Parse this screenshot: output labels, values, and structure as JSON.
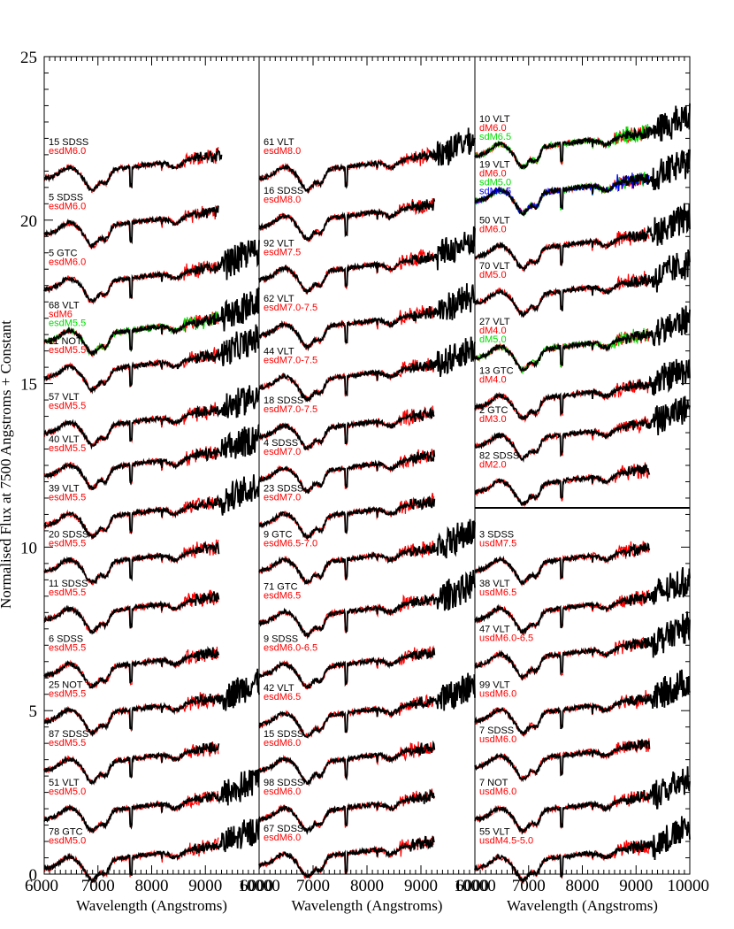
{
  "figure": {
    "ylabel": "Normalised Flux at 7500 Angstroms + Constant",
    "xlabel": "Wavelength (Angstroms)",
    "xticks": [
      "6000",
      "7000",
      "8000",
      "9000",
      "10000"
    ],
    "yticks": [
      "0",
      "5",
      "10",
      "15",
      "20",
      "25"
    ]
  },
  "chart_data": {
    "type": "line",
    "title": "",
    "xlabel": "Wavelength (Angstroms)",
    "ylabel": "Normalised Flux at 7500 Angstroms + Constant",
    "xlim": [
      6000,
      10000
    ],
    "ylim": [
      0,
      25
    ],
    "colors": {
      "object": "#000000",
      "template": "#ff0000",
      "template2": "#00dd00",
      "template3": "#0000ff"
    },
    "panels": [
      {
        "name": "left",
        "spectra": [
          {
            "object": "15 SDSS",
            "templates": [
              "esdM6.0"
            ],
            "offset": 21.6,
            "end": 9300
          },
          {
            "object": "5 SDSS",
            "templates": [
              "esdM6.0"
            ],
            "offset": 19.9,
            "end": 9250
          },
          {
            "object": "5 GTC",
            "templates": [
              "esdM6.0"
            ],
            "offset": 18.2,
            "end": 10000
          },
          {
            "object": "68 VLT",
            "templates": [
              "sdM6",
              "esdM5.5"
            ],
            "offset": 16.6,
            "end": 10000
          },
          {
            "object": "11 NOT",
            "templates": [
              "esdM5.5"
            ],
            "offset": 15.5,
            "end": 10000
          },
          {
            "object": "57 VLT",
            "templates": [
              "esdM5.5"
            ],
            "offset": 13.8,
            "end": 10000
          },
          {
            "object": "40 VLT",
            "templates": [
              "esdM5.5"
            ],
            "offset": 12.5,
            "end": 10000
          },
          {
            "object": "39 VLT",
            "templates": [
              "esdM5.5"
            ],
            "offset": 11.0,
            "end": 10000
          },
          {
            "object": "20 SDSS",
            "templates": [
              "esdM5.5"
            ],
            "offset": 9.6,
            "end": 9250
          },
          {
            "object": "11 SDSS",
            "templates": [
              "esdM5.5"
            ],
            "offset": 8.1,
            "end": 9250
          },
          {
            "object": "6 SDSS",
            "templates": [
              "esdM5.5"
            ],
            "offset": 6.4,
            "end": 9250
          },
          {
            "object": "25 NOT",
            "templates": [
              "esdM5.5"
            ],
            "offset": 5.0,
            "end": 10000
          },
          {
            "object": "87 SDSS",
            "templates": [
              "esdM5.5"
            ],
            "offset": 3.5,
            "end": 9250
          },
          {
            "object": "51 VLT",
            "templates": [
              "esdM5.0"
            ],
            "offset": 2.0,
            "end": 10000
          },
          {
            "object": "78 GTC",
            "templates": [
              "esdM5.0"
            ],
            "offset": 0.5,
            "end": 10000
          }
        ]
      },
      {
        "name": "middle",
        "spectra": [
          {
            "object": "61 VLT",
            "templates": [
              "esdM8.0"
            ],
            "offset": 21.6,
            "end": 10000
          },
          {
            "object": "16 SDSS",
            "templates": [
              "esdM8.0"
            ],
            "offset": 20.1,
            "end": 9250
          },
          {
            "object": "92 VLT",
            "templates": [
              "esdM7.5"
            ],
            "offset": 18.5,
            "end": 10000
          },
          {
            "object": "62 VLT",
            "templates": [
              "esdM7.0-7.5"
            ],
            "offset": 16.8,
            "end": 10000
          },
          {
            "object": "44 VLT",
            "templates": [
              "esdM7.0-7.5"
            ],
            "offset": 15.2,
            "end": 10000
          },
          {
            "object": "18 SDSS",
            "templates": [
              "esdM7.0-7.5"
            ],
            "offset": 13.7,
            "end": 9250
          },
          {
            "object": "4 SDSS",
            "templates": [
              "esdM7.0"
            ],
            "offset": 12.4,
            "end": 9250
          },
          {
            "object": "23 SDSS",
            "templates": [
              "esdM7.0"
            ],
            "offset": 11.0,
            "end": 9250
          },
          {
            "object": "9 GTC",
            "templates": [
              "esdM6.5-7.0"
            ],
            "offset": 9.6,
            "end": 10000
          },
          {
            "object": "71 GTC",
            "templates": [
              "esdM6.5"
            ],
            "offset": 8.0,
            "end": 10000
          },
          {
            "object": "9 SDSS",
            "templates": [
              "esdM6.0-6.5"
            ],
            "offset": 6.4,
            "end": 9250
          },
          {
            "object": "42 VLT",
            "templates": [
              "esdM6.5"
            ],
            "offset": 4.9,
            "end": 10000
          },
          {
            "object": "15 SDSS",
            "templates": [
              "esdM6.0"
            ],
            "offset": 3.5,
            "end": 9250
          },
          {
            "object": "98 SDSS",
            "templates": [
              "esdM6.0"
            ],
            "offset": 2.0,
            "end": 9250
          },
          {
            "object": "67 SDSS",
            "templates": [
              "esdM6.0"
            ],
            "offset": 0.6,
            "end": 9250
          }
        ]
      },
      {
        "name": "right",
        "divider_y": 11.2,
        "spectra": [
          {
            "object": "10 VLT",
            "templates": [
              "dM6.0",
              "sdM6.5"
            ],
            "offset": 22.3,
            "end": 10000
          },
          {
            "object": "19 VLT",
            "templates": [
              "dM6.0",
              "sdM5.0",
              "sdM6.5"
            ],
            "offset": 20.9,
            "end": 10000
          },
          {
            "object": "50 VLT",
            "templates": [
              "dM6.0"
            ],
            "offset": 19.2,
            "end": 10000
          },
          {
            "object": "70 VLT",
            "templates": [
              "dM5.0"
            ],
            "offset": 17.8,
            "end": 10000
          },
          {
            "object": "27 VLT",
            "templates": [
              "dM4.0",
              "dM5.0"
            ],
            "offset": 16.1,
            "end": 10000
          },
          {
            "object": "13 GTC",
            "templates": [
              "dM4.0"
            ],
            "offset": 14.6,
            "end": 10000
          },
          {
            "object": "2 GTC",
            "templates": [
              "dM3.0"
            ],
            "offset": 13.4,
            "end": 10000
          },
          {
            "object": "82 SDSS",
            "templates": [
              "dM2.0"
            ],
            "offset": 12.0,
            "end": 9250
          },
          {
            "object": "3 SDSS",
            "templates": [
              "usdM7.5"
            ],
            "offset": 9.6,
            "end": 9250
          },
          {
            "object": "38 VLT",
            "templates": [
              "usdM6.5"
            ],
            "offset": 8.1,
            "end": 10000
          },
          {
            "object": "47 VLT",
            "templates": [
              "usdM6.0-6.5"
            ],
            "offset": 6.7,
            "end": 10000
          },
          {
            "object": "99 VLT",
            "templates": [
              "usdM6.0"
            ],
            "offset": 5.0,
            "end": 10000
          },
          {
            "object": "7 SDSS",
            "templates": [
              "usdM6.0"
            ],
            "offset": 3.6,
            "end": 9250
          },
          {
            "object": "7 NOT",
            "templates": [
              "usdM6.0"
            ],
            "offset": 2.0,
            "end": 10000
          },
          {
            "object": "55 VLT",
            "templates": [
              "usdM4.5-5.0"
            ],
            "offset": 0.5,
            "end": 10000
          }
        ]
      }
    ]
  }
}
